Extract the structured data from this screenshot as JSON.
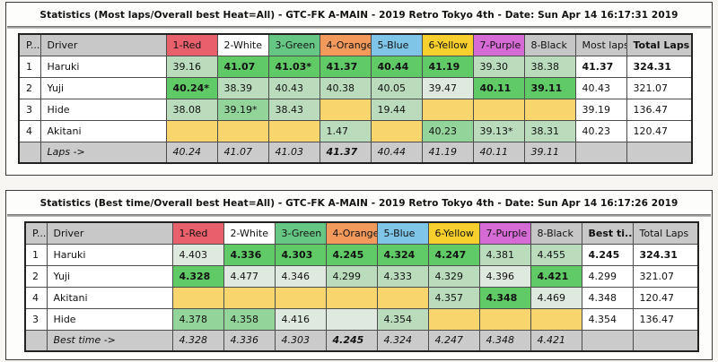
{
  "cell_colors": {
    "g": "#5fca66",
    "mg": "#93d49b",
    "lg": "#badcbc",
    "vl": "#e0e9df",
    "y": "#f8d56d"
  },
  "sections": [
    {
      "title": "Statistics (Most laps/Overall best Heat=All) - GTC-FK A-MAIN - 2019 Retro Tokyo 4th - Date: Sun Apr 14 16:17:31 2019",
      "pos_col": "P...",
      "driver_col": "Driver",
      "heat_cols": [
        {
          "label": "1-Red",
          "bg": "#e8606b"
        },
        {
          "label": "2-White",
          "bg": "#ffffff"
        },
        {
          "label": "3-Green",
          "bg": "#66c785"
        },
        {
          "label": "4-Orange",
          "bg": "#f29a5c"
        },
        {
          "label": "5-Blue",
          "bg": "#7ec5e8"
        },
        {
          "label": "6-Yellow",
          "bg": "#f7d02e"
        },
        {
          "label": "7-Purple",
          "bg": "#d66bd6"
        },
        {
          "label": "8-Black",
          "bg": "#c6c6c6"
        }
      ],
      "summary_col": "Most laps",
      "summary_col_bold": false,
      "total_col": "Total Laps",
      "total_col_bold": true,
      "rows": [
        {
          "pos": "1",
          "driver": "Haruki",
          "cells": [
            {
              "v": "39.16",
              "c": "lg"
            },
            {
              "v": "41.07",
              "c": "g",
              "b": true
            },
            {
              "v": "41.03*",
              "c": "g",
              "b": true
            },
            {
              "v": "41.37",
              "c": "g",
              "b": true
            },
            {
              "v": "40.44",
              "c": "g",
              "b": true
            },
            {
              "v": "41.19",
              "c": "g",
              "b": true
            },
            {
              "v": "39.30",
              "c": "lg"
            },
            {
              "v": "38.38",
              "c": "lg"
            }
          ],
          "summary": {
            "v": "41.37",
            "b": true
          },
          "total": {
            "v": "324.31",
            "b": true
          }
        },
        {
          "pos": "2",
          "driver": "Yuji",
          "cells": [
            {
              "v": "40.24*",
              "c": "g",
              "b": true
            },
            {
              "v": "38.39",
              "c": "lg"
            },
            {
              "v": "40.43",
              "c": "lg"
            },
            {
              "v": "40.38",
              "c": "lg"
            },
            {
              "v": "40.05",
              "c": "lg"
            },
            {
              "v": "39.47",
              "c": "vl"
            },
            {
              "v": "40.11",
              "c": "g",
              "b": true
            },
            {
              "v": "39.11",
              "c": "g",
              "b": true
            }
          ],
          "summary": {
            "v": "40.43"
          },
          "total": {
            "v": "321.07"
          }
        },
        {
          "pos": "3",
          "driver": "Hide",
          "cells": [
            {
              "v": "38.08",
              "c": "lg"
            },
            {
              "v": "39.19*",
              "c": "mg"
            },
            {
              "v": "38.43",
              "c": "lg"
            },
            {
              "v": "",
              "c": "y"
            },
            {
              "v": "19.44",
              "c": "lg"
            },
            {
              "v": "",
              "c": "y"
            },
            {
              "v": "",
              "c": "y"
            },
            {
              "v": "",
              "c": "y"
            }
          ],
          "summary": {
            "v": "39.19"
          },
          "total": {
            "v": "136.47"
          }
        },
        {
          "pos": "4",
          "driver": "Akitani",
          "cells": [
            {
              "v": "",
              "c": "y"
            },
            {
              "v": "",
              "c": "y"
            },
            {
              "v": "",
              "c": "y"
            },
            {
              "v": "1.47",
              "c": "lg"
            },
            {
              "v": "",
              "c": "y"
            },
            {
              "v": "40.23",
              "c": "mg"
            },
            {
              "v": "39.13*",
              "c": "lg"
            },
            {
              "v": "38.31",
              "c": "lg"
            }
          ],
          "summary": {
            "v": "40.23"
          },
          "total": {
            "v": "120.47"
          }
        }
      ],
      "footer": {
        "label": "Laps ->",
        "values": [
          {
            "v": "40.24"
          },
          {
            "v": "41.07"
          },
          {
            "v": "41.03"
          },
          {
            "v": "41.37",
            "b": true
          },
          {
            "v": "40.44"
          },
          {
            "v": "41.19"
          },
          {
            "v": "40.11"
          },
          {
            "v": "39.11"
          }
        ]
      }
    },
    {
      "title": "Statistics (Best time/Overall best Heat=All) - GTC-FK A-MAIN - 2019 Retro Tokyo 4th - Date: Sun Apr 14 16:17:26 2019",
      "pos_col": "P...",
      "driver_col": "Driver",
      "heat_cols": [
        {
          "label": "1-Red",
          "bg": "#e8606b"
        },
        {
          "label": "2-White",
          "bg": "#ffffff"
        },
        {
          "label": "3-Green",
          "bg": "#66c785"
        },
        {
          "label": "4-Orange",
          "bg": "#f29a5c"
        },
        {
          "label": "5-Blue",
          "bg": "#7ec5e8"
        },
        {
          "label": "6-Yellow",
          "bg": "#f7d02e"
        },
        {
          "label": "7-Purple",
          "bg": "#d66bd6"
        },
        {
          "label": "8-Black",
          "bg": "#c6c6c6"
        }
      ],
      "summary_col": "Best ti...",
      "summary_col_bold": true,
      "total_col": "Total Laps",
      "total_col_bold": false,
      "rows": [
        {
          "pos": "1",
          "driver": "Haruki",
          "cells": [
            {
              "v": "4.403",
              "c": "vl"
            },
            {
              "v": "4.336",
              "c": "g",
              "b": true
            },
            {
              "v": "4.303",
              "c": "g",
              "b": true
            },
            {
              "v": "4.245",
              "c": "g",
              "b": true
            },
            {
              "v": "4.324",
              "c": "g",
              "b": true
            },
            {
              "v": "4.247",
              "c": "g",
              "b": true
            },
            {
              "v": "4.381",
              "c": "lg"
            },
            {
              "v": "4.455",
              "c": "lg"
            }
          ],
          "summary": {
            "v": "4.245",
            "b": true
          },
          "total": {
            "v": "324.31",
            "b": true
          }
        },
        {
          "pos": "2",
          "driver": "Yuji",
          "cells": [
            {
              "v": "4.328",
              "c": "g",
              "b": true
            },
            {
              "v": "4.477",
              "c": "vl"
            },
            {
              "v": "4.346",
              "c": "vl"
            },
            {
              "v": "4.299",
              "c": "lg"
            },
            {
              "v": "4.333",
              "c": "lg"
            },
            {
              "v": "4.329",
              "c": "lg"
            },
            {
              "v": "4.396",
              "c": "vl"
            },
            {
              "v": "4.421",
              "c": "g",
              "b": true
            }
          ],
          "summary": {
            "v": "4.299"
          },
          "total": {
            "v": "321.07"
          }
        },
        {
          "pos": "4",
          "driver": "Akitani",
          "cells": [
            {
              "v": "",
              "c": "y"
            },
            {
              "v": "",
              "c": "y"
            },
            {
              "v": "",
              "c": "y"
            },
            {
              "v": "",
              "c": "y"
            },
            {
              "v": "",
              "c": "y"
            },
            {
              "v": "4.357",
              "c": "lg"
            },
            {
              "v": "4.348",
              "c": "g",
              "b": true
            },
            {
              "v": "4.469",
              "c": "vl"
            }
          ],
          "summary": {
            "v": "4.348"
          },
          "total": {
            "v": "120.47"
          }
        },
        {
          "pos": "3",
          "driver": "Hide",
          "cells": [
            {
              "v": "4.378",
              "c": "mg"
            },
            {
              "v": "4.358",
              "c": "mg"
            },
            {
              "v": "4.416",
              "c": "vl"
            },
            {
              "v": "",
              "c": "vl"
            },
            {
              "v": "4.354",
              "c": "lg"
            },
            {
              "v": "",
              "c": "y"
            },
            {
              "v": "",
              "c": "y"
            },
            {
              "v": "",
              "c": "y"
            }
          ],
          "summary": {
            "v": "4.354"
          },
          "total": {
            "v": "136.47"
          }
        }
      ],
      "footer": {
        "label": "Best time ->",
        "values": [
          {
            "v": "4.328"
          },
          {
            "v": "4.336"
          },
          {
            "v": "4.303"
          },
          {
            "v": "4.245",
            "b": true
          },
          {
            "v": "4.324"
          },
          {
            "v": "4.247"
          },
          {
            "v": "4.348"
          },
          {
            "v": "4.421"
          }
        ]
      }
    }
  ]
}
